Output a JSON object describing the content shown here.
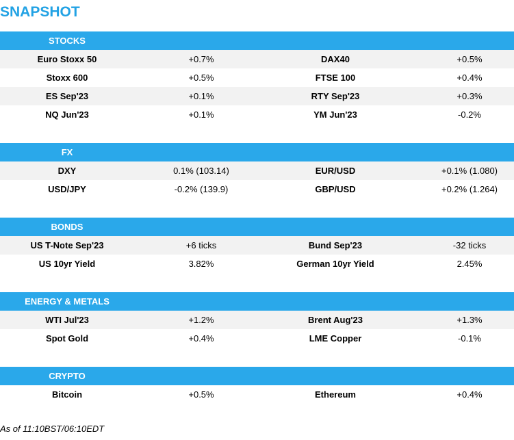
{
  "title": "SNAPSHOT",
  "sections": [
    {
      "name": "STOCKS",
      "rows": [
        {
          "name1": "Euro Stoxx 50",
          "value1": "+0.7%",
          "name2": "DAX40",
          "value2": "+0.5%"
        },
        {
          "name1": "Stoxx 600",
          "value1": "+0.5%",
          "name2": "FTSE 100",
          "value2": "+0.4%"
        },
        {
          "name1": "ES Sep'23",
          "value1": "+0.1%",
          "name2": "RTY Sep'23",
          "value2": "+0.3%"
        },
        {
          "name1": "NQ Jun'23",
          "value1": "+0.1%",
          "name2": "YM Jun'23",
          "value2": "-0.2%"
        }
      ]
    },
    {
      "name": "FX",
      "rows": [
        {
          "name1": "DXY",
          "value1": "0.1% (103.14)",
          "name2": "EUR/USD",
          "value2": "+0.1% (1.080)"
        },
        {
          "name1": "USD/JPY",
          "value1": "-0.2% (139.9)",
          "name2": "GBP/USD",
          "value2": "+0.2% (1.264)"
        }
      ]
    },
    {
      "name": "BONDS",
      "rows": [
        {
          "name1": "US T-Note Sep'23",
          "value1": "+6 ticks",
          "name2": "Bund Sep'23",
          "value2": "-32 ticks"
        },
        {
          "name1": "US 10yr Yield",
          "value1": "3.82%",
          "name2": "German 10yr Yield",
          "value2": "2.45%"
        }
      ]
    },
    {
      "name": "ENERGY & METALS",
      "rows": [
        {
          "name1": "WTI Jul'23",
          "value1": "+1.2%",
          "name2": "Brent Aug'23",
          "value2": "+1.3%"
        },
        {
          "name1": "Spot Gold",
          "value1": "+0.4%",
          "name2": "LME Copper",
          "value2": "-0.1%"
        }
      ]
    },
    {
      "name": "CRYPTO",
      "rows": [
        {
          "name1": "Bitcoin",
          "value1": "+0.5%",
          "name2": "Ethereum",
          "value2": "+0.4%"
        }
      ]
    }
  ],
  "footer": "As of 11:10BST/06:10EDT"
}
